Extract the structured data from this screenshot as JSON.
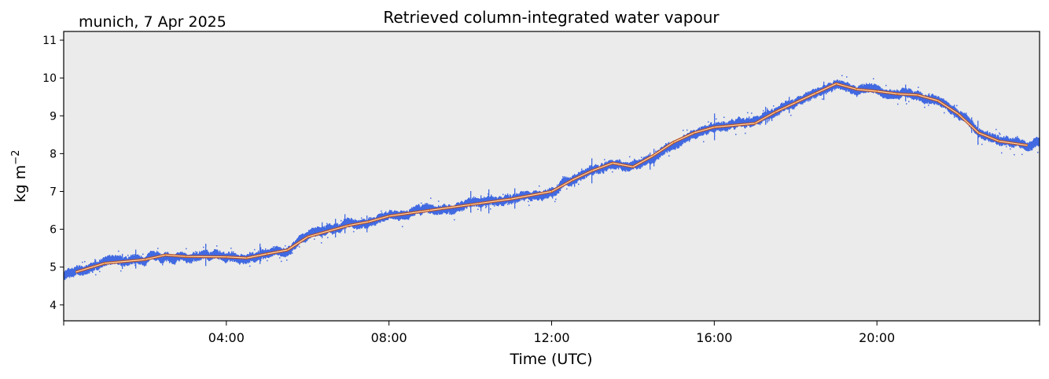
{
  "chart_data": {
    "type": "scatter",
    "title": "Retrieved column-integrated water vapour",
    "annotation": "munich, 7 Apr 2025",
    "xlabel": "Time (UTC)",
    "ylabel": "kg m",
    "ylabel_superscript": "−2",
    "xlim_hours": [
      0,
      24
    ],
    "ylim": [
      3.58,
      11.23
    ],
    "x_ticks": [
      {
        "hour": 0,
        "label": ""
      },
      {
        "hour": 4,
        "label": "04:00"
      },
      {
        "hour": 8,
        "label": "08:00"
      },
      {
        "hour": 12,
        "label": "12:00"
      },
      {
        "hour": 16,
        "label": "16:00"
      },
      {
        "hour": 20,
        "label": "20:00"
      },
      {
        "hour": 24,
        "label": ""
      }
    ],
    "y_ticks": [
      4,
      5,
      6,
      7,
      8,
      9,
      10,
      11
    ],
    "grid": false,
    "background_color": "#ebebeb",
    "series": [
      {
        "kind": "raw-scatter",
        "color": "#4169e1",
        "x_hours": [
          0,
          0.3,
          1,
          2,
          2.5,
          3,
          4,
          4.5,
          5,
          5.5,
          6,
          7,
          7.5,
          8,
          9,
          10,
          11,
          12,
          12.5,
          13,
          13.5,
          14,
          14.5,
          15,
          15.5,
          16,
          17,
          17.5,
          18,
          18.5,
          19,
          19.5,
          20,
          20.5,
          21,
          21.5,
          22,
          22.5,
          23,
          23.7,
          24
        ],
        "values": [
          4.8,
          4.87,
          5.1,
          5.2,
          5.32,
          5.28,
          5.27,
          5.24,
          5.35,
          5.45,
          5.8,
          6.1,
          6.2,
          6.35,
          6.5,
          6.65,
          6.8,
          7.0,
          7.3,
          7.55,
          7.75,
          7.65,
          7.95,
          8.3,
          8.55,
          8.7,
          8.8,
          9.1,
          9.35,
          9.6,
          9.85,
          9.7,
          9.65,
          9.58,
          9.55,
          9.4,
          9.05,
          8.55,
          8.33,
          8.22,
          8.28
        ]
      },
      {
        "kind": "smoothed-line",
        "color": "#ff8c00",
        "x_hours": [
          0.3,
          1,
          2,
          2.5,
          3,
          4,
          4.5,
          5,
          5.5,
          6,
          7,
          7.5,
          8,
          9,
          10,
          11,
          12,
          12.5,
          13,
          13.5,
          14,
          14.5,
          15,
          15.5,
          16,
          17,
          17.5,
          18,
          18.5,
          19,
          19.5,
          20,
          20.5,
          21,
          21.5,
          22,
          22.5,
          23,
          23.7
        ],
        "values": [
          4.87,
          5.1,
          5.2,
          5.32,
          5.28,
          5.27,
          5.24,
          5.35,
          5.45,
          5.8,
          6.1,
          6.2,
          6.35,
          6.5,
          6.65,
          6.8,
          7.0,
          7.3,
          7.55,
          7.75,
          7.65,
          7.95,
          8.3,
          8.55,
          8.7,
          8.8,
          9.1,
          9.35,
          9.6,
          9.85,
          9.7,
          9.65,
          9.58,
          9.55,
          9.4,
          9.05,
          8.55,
          8.33,
          8.22
        ]
      }
    ]
  }
}
